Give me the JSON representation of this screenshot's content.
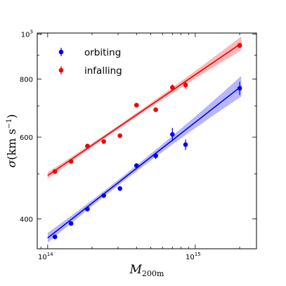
{
  "chart_data": {
    "type": "scatter",
    "title": "",
    "xlabel": "M",
    "xlabel_sub": "200m",
    "ylabel": "σ",
    "ylabel_units": "(km s",
    "ylabel_units_sup": "−1",
    "ylabel_units_close": ")",
    "x_scale": "log",
    "y_scale": "log",
    "xlim": [
      85000000000000.0,
      2600000000000000.0
    ],
    "ylim": [
      345,
      1005
    ],
    "x_ticks": [
      {
        "value": 100000000000000.0,
        "base": "10",
        "exp": "14"
      },
      {
        "value": 1000000000000000.0,
        "base": "10",
        "exp": "15"
      }
    ],
    "y_ticks": [
      {
        "value": 400,
        "label": "400"
      },
      {
        "value": 600,
        "label": "600"
      },
      {
        "value": 800,
        "label": "800"
      },
      {
        "value": 1000,
        "label": "10",
        "sup": "3"
      }
    ],
    "legend_position": "top-left",
    "series": [
      {
        "name": "orbiting",
        "color": "#0000ee",
        "band_color": "#7b7bff",
        "points": [
          {
            "x": 112000000000000.0,
            "y": 366,
            "err": 4
          },
          {
            "x": 144000000000000.0,
            "y": 391,
            "err": 4
          },
          {
            "x": 186000000000000.0,
            "y": 420,
            "err": 4
          },
          {
            "x": 240000000000000.0,
            "y": 449,
            "err": 4
          },
          {
            "x": 309000000000000.0,
            "y": 465,
            "err": 5
          },
          {
            "x": 400000000000000.0,
            "y": 521,
            "err": 5
          },
          {
            "x": 540000000000000.0,
            "y": 547,
            "err": 9
          },
          {
            "x": 700000000000000.0,
            "y": 608,
            "err": 20
          },
          {
            "x": 860000000000000.0,
            "y": 578,
            "err": 15
          },
          {
            "x": 2000000000000000.0,
            "y": 764,
            "err": 25
          }
        ],
        "fit": {
          "x": [
            100000000000000.0,
            2050000000000000.0
          ],
          "y": [
            364,
            772
          ],
          "band": 0.012
        }
      },
      {
        "name": "infalling",
        "color": "#ee0000",
        "band_color": "#ff7b7b",
        "points": [
          {
            "x": 112000000000000.0,
            "y": 506,
            "err": 3
          },
          {
            "x": 144000000000000.0,
            "y": 532,
            "err": 4
          },
          {
            "x": 186000000000000.0,
            "y": 574,
            "err": 4
          },
          {
            "x": 240000000000000.0,
            "y": 587,
            "err": 4
          },
          {
            "x": 309000000000000.0,
            "y": 604,
            "err": 4
          },
          {
            "x": 400000000000000.0,
            "y": 703,
            "err": 5
          },
          {
            "x": 540000000000000.0,
            "y": 687,
            "err": 5
          },
          {
            "x": 700000000000000.0,
            "y": 767,
            "err": 12
          },
          {
            "x": 860000000000000.0,
            "y": 777,
            "err": 14
          },
          {
            "x": 2000000000000000.0,
            "y": 945,
            "err": 12
          }
        ],
        "fit": {
          "x": [
            100000000000000.0,
            2050000000000000.0
          ],
          "y": [
            496,
            955
          ],
          "band": 0.008
        }
      }
    ]
  }
}
